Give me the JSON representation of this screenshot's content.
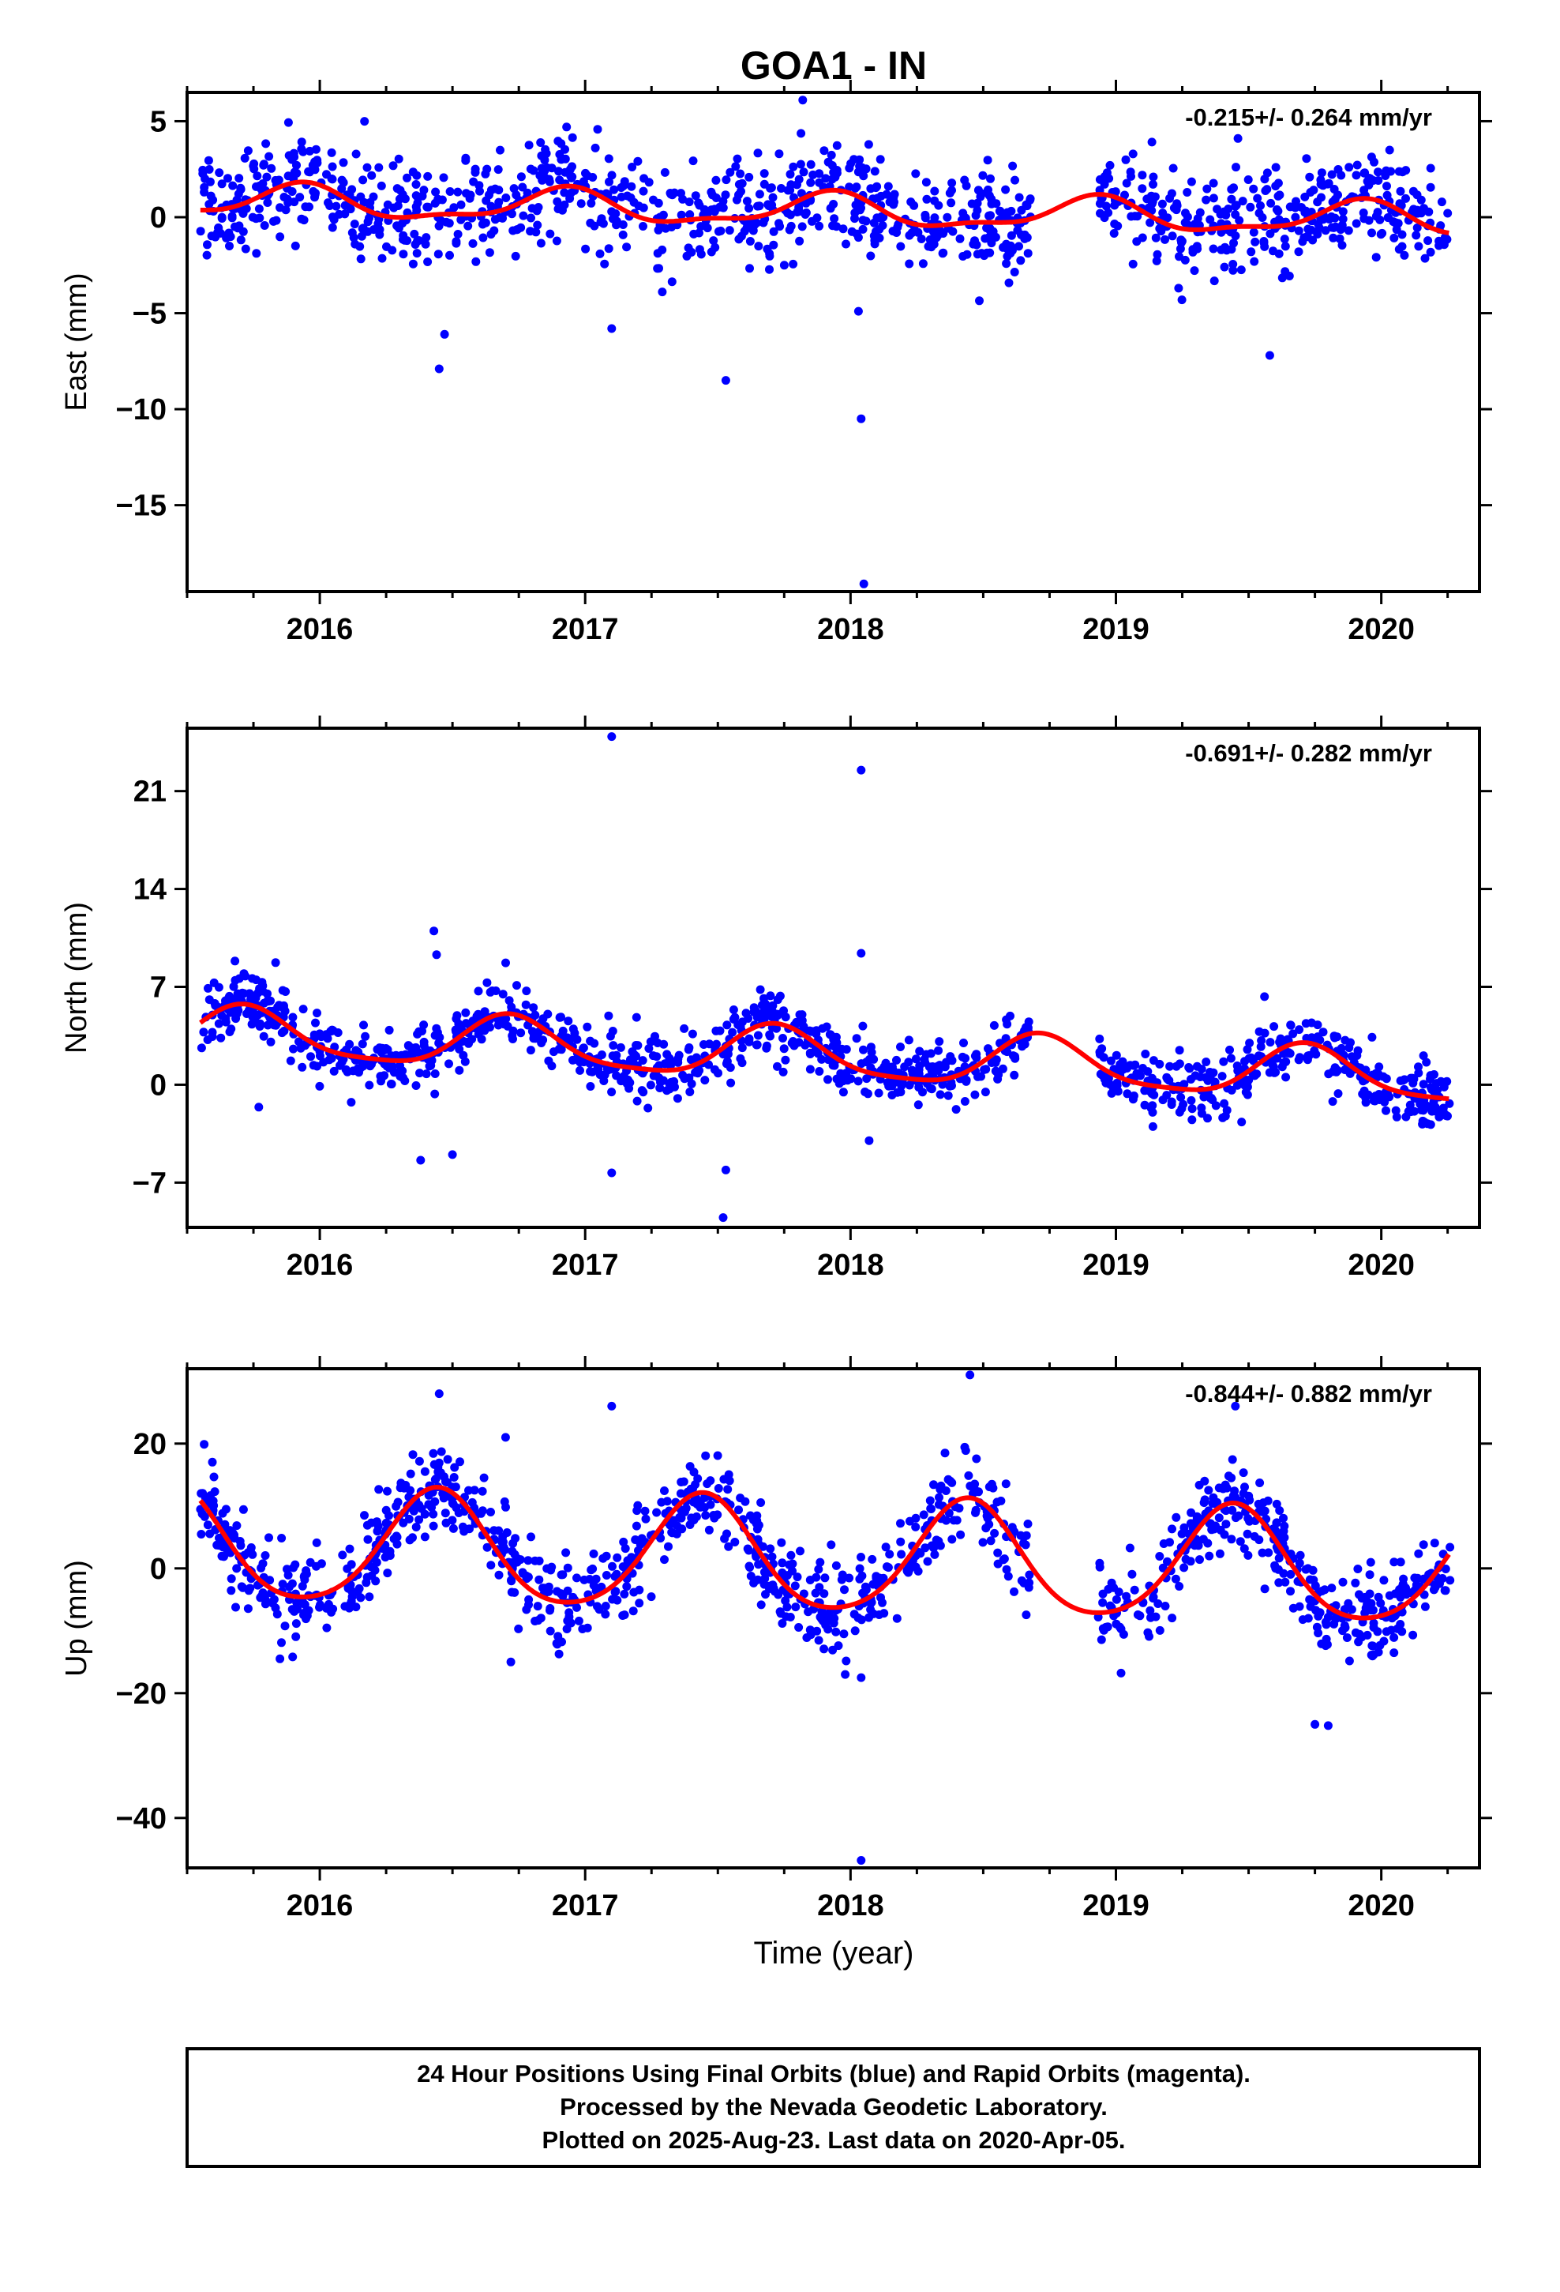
{
  "title": "GOA1 - IN",
  "x_label": "Time (year)",
  "footer": [
    "24 Hour Positions Using Final Orbits (blue) and Rapid Orbits (magenta).",
    "Processed by the Nevada Geodetic Laboratory.",
    "Plotted on 2025-Aug-23. Last data on 2020-Apr-05."
  ],
  "colors": {
    "points": "#0000ff",
    "model": "#ff0000",
    "frame": "#000000"
  },
  "chart_data": [
    {
      "type": "scatter",
      "title": "GOA1 - IN",
      "xlabel": "",
      "ylabel": "East (mm)",
      "rate": "-0.215+/- 0.264 mm/yr",
      "xlim": [
        2015.5,
        2020.37
      ],
      "ylim": [
        -19.5,
        6.5
      ],
      "xticks": [
        2016,
        2017,
        2018,
        2019,
        2020
      ],
      "yticks": [
        5,
        0,
        -5,
        -10,
        -15
      ],
      "data_span": [
        2015.55,
        2020.26
      ],
      "gaps": [
        [
          2018.68,
          2018.93
        ]
      ],
      "model": {
        "offset": 0.3,
        "trend_mm_per_yr": -0.215,
        "annual_amp": 0.8,
        "annual_peak": 0.92,
        "semiannual_amp": 0.3,
        "semiannual_peak": 0.95
      },
      "noise_mm": 1.3,
      "outliers": [
        {
          "x": 2016.45,
          "y": -7.9
        },
        {
          "x": 2016.47,
          "y": -6.1
        },
        {
          "x": 2017.53,
          "y": -8.5
        },
        {
          "x": 2017.82,
          "y": 6.1
        },
        {
          "x": 2018.04,
          "y": -10.5
        },
        {
          "x": 2018.05,
          "y": -19.1
        },
        {
          "x": 2018.03,
          "y": -4.9
        },
        {
          "x": 2019.58,
          "y": -7.2
        },
        {
          "x": 2017.1,
          "y": -5.8
        },
        {
          "x": 2019.46,
          "y": 4.1
        },
        {
          "x": 2016.93,
          "y": 4.7
        }
      ]
    },
    {
      "type": "scatter",
      "xlabel": "",
      "ylabel": "North (mm)",
      "rate": "-0.691+/- 0.282 mm/yr",
      "xlim": [
        2015.5,
        2020.37
      ],
      "ylim": [
        -10.2,
        25.5
      ],
      "xticks": [
        2016,
        2017,
        2018,
        2019,
        2020
      ],
      "yticks": [
        21,
        14,
        7,
        0,
        -7
      ],
      "data_span": [
        2015.55,
        2020.26
      ],
      "gaps": [
        [
          2018.68,
          2018.93
        ]
      ],
      "model": {
        "offset": 2.0,
        "trend_mm_per_yr": -0.691,
        "annual_amp": 1.8,
        "annual_peak": 0.72,
        "semiannual_amp": 0.4,
        "semiannual_peak": 0.7
      },
      "noise_mm": 1.1,
      "outliers": [
        {
          "x": 2017.1,
          "y": 24.9
        },
        {
          "x": 2018.04,
          "y": 22.5
        },
        {
          "x": 2018.04,
          "y": 9.4
        },
        {
          "x": 2016.43,
          "y": 11.0
        },
        {
          "x": 2016.44,
          "y": 9.3
        },
        {
          "x": 2017.52,
          "y": -9.5
        },
        {
          "x": 2017.53,
          "y": -6.1
        },
        {
          "x": 2015.77,
          "y": -1.6
        },
        {
          "x": 2016.38,
          "y": -5.4
        },
        {
          "x": 2016.5,
          "y": -5.0
        },
        {
          "x": 2017.1,
          "y": -6.3
        },
        {
          "x": 2019.56,
          "y": 6.3
        },
        {
          "x": 2017.66,
          "y": 6.8
        },
        {
          "x": 2018.07,
          "y": -4.0
        }
      ]
    },
    {
      "type": "scatter",
      "xlabel": "Time (year)",
      "ylabel": "Up (mm)",
      "rate": "-0.844+/- 0.882 mm/yr",
      "xlim": [
        2015.5,
        2020.37
      ],
      "ylim": [
        -48,
        32
      ],
      "xticks": [
        2016,
        2017,
        2018,
        2019,
        2020
      ],
      "yticks": [
        20,
        0,
        -20,
        -40
      ],
      "data_span": [
        2015.55,
        2020.26
      ],
      "gaps": [
        [
          2018.68,
          2018.93
        ]
      ],
      "model": {
        "offset": 1.5,
        "trend_mm_per_yr": -0.844,
        "annual_amp": 9.0,
        "annual_peak": 0.44,
        "semiannual_amp": 1.2,
        "semiannual_peak": 0.45
      },
      "noise_mm": 3.5,
      "outliers": [
        {
          "x": 2018.04,
          "y": -46.8
        },
        {
          "x": 2018.45,
          "y": 31.0
        },
        {
          "x": 2017.1,
          "y": 26.0
        },
        {
          "x": 2016.45,
          "y": 28.0
        },
        {
          "x": 2019.75,
          "y": -25.0
        },
        {
          "x": 2019.8,
          "y": -25.2
        },
        {
          "x": 2018.04,
          "y": -17.5
        },
        {
          "x": 2017.98,
          "y": -17.0
        },
        {
          "x": 2016.72,
          "y": -15.0
        },
        {
          "x": 2015.85,
          "y": -14.5
        },
        {
          "x": 2019.45,
          "y": 26.0
        },
        {
          "x": 2016.7,
          "y": 21.0
        }
      ]
    }
  ]
}
